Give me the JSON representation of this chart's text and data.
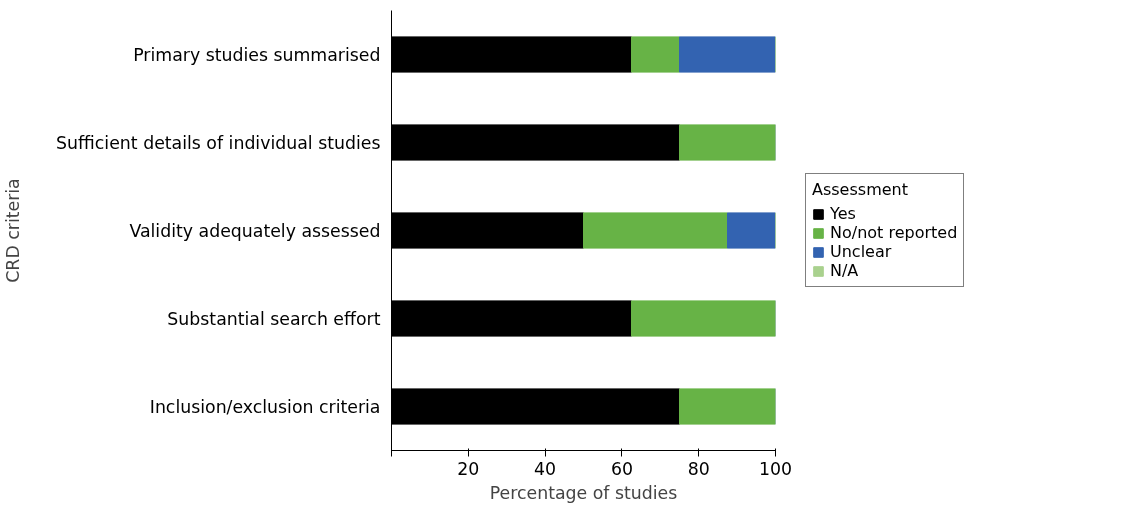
{
  "chart_data": {
    "type": "bar",
    "orientation": "horizontal",
    "stacked": true,
    "xlabel": "Percentage of studies",
    "ylabel": "CRD criteria",
    "legend_title": "Assessment",
    "legend": "right",
    "grid": false,
    "categories": [
      "Primary studies summarised",
      "Sufficient details of individual studies",
      "Validity adequately assessed",
      "Substantial search effort",
      "Inclusion/exclusion criteria"
    ],
    "series": [
      {
        "name": "Yes",
        "color": "#000000",
        "values": [
          62.5,
          75,
          50,
          62.5,
          75
        ]
      },
      {
        "name": "No/not reported",
        "color": "#67b346",
        "values": [
          12.5,
          25,
          37.5,
          37.5,
          25
        ]
      },
      {
        "name": "Unclear",
        "color": "#3363b1",
        "values": [
          25,
          0,
          12.5,
          0,
          0
        ]
      },
      {
        "name": "N/A",
        "color": "#a9d18e",
        "values": [
          0,
          0,
          0,
          0,
          0
        ]
      }
    ],
    "xlim": [
      0,
      100
    ],
    "xticks": [
      {
        "value": 0,
        "label": null
      },
      20,
      40,
      60,
      80,
      100
    ]
  }
}
